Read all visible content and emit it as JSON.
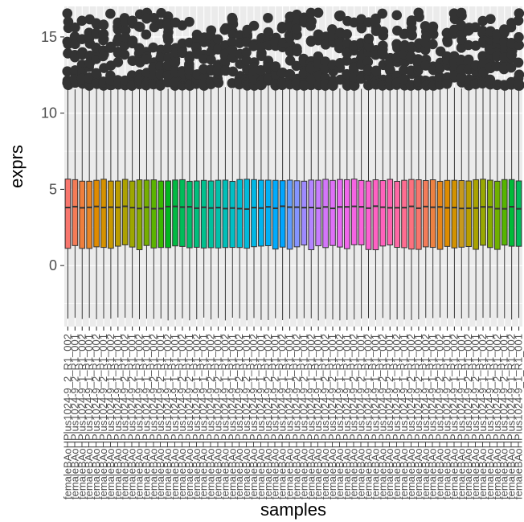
{
  "chart_data": {
    "type": "boxplot",
    "xlabel": "samples",
    "ylabel": "exprs",
    "ylim": [
      -4.0,
      17.0
    ],
    "y_ticks": [
      0,
      5,
      10,
      15
    ],
    "y_tick_labels": [
      "0",
      "5",
      "10",
      "15"
    ],
    "grid": true,
    "background": "#ebebeb",
    "gridline_color": "#ffffff",
    "legend": "none",
    "series_name": "",
    "n_samples": 64,
    "box_whisker_color": "#333333",
    "outlier_color": "#333333",
    "sample_colors": [
      "#F8766D",
      "#F47B56",
      "#EF7F3C",
      "#E88526",
      "#E08B00",
      "#D59100",
      "#C99800",
      "#BB9D00",
      "#ADA200",
      "#9DA700",
      "#8BAB00",
      "#76AF00",
      "#5BB300",
      "#39B600",
      "#00B81F",
      "#00BA42",
      "#00BC59",
      "#00BE6C",
      "#00BF7D",
      "#00C08D",
      "#00C19C",
      "#00C1AA",
      "#00C0B8",
      "#00BFC4",
      "#00BDD0",
      "#00BBDB",
      "#00B8E5",
      "#00B4EF",
      "#00B0F6",
      "#00ABFD",
      "#00A5FF",
      "#619CFF",
      "#8494FF",
      "#9E8AFF",
      "#B385FF",
      "#C77CFF",
      "#D376F9",
      "#DF70F8",
      "#E76BF3",
      "#F066EA",
      "#F564E3",
      "#FA62DB",
      "#FD61D1",
      "#FF61C3",
      "#FF62BC",
      "#FF64B0",
      "#FF67A4",
      "#FF6C91",
      "#FC717F",
      "#F8766D",
      "#F37B59",
      "#ED8141",
      "#E7861B",
      "#DE8C00",
      "#D39200",
      "#C7991D",
      "#B99E00",
      "#AAA300",
      "#99A800",
      "#86AC00",
      "#70B000",
      "#56B400",
      "#00BA38",
      "#00BC5A"
    ],
    "box_summary_typical": {
      "min": -3.5,
      "q1": 1.2,
      "median": 3.8,
      "q3": 5.6,
      "upper_outlier_range": [
        11.8,
        16.6
      ]
    },
    "x_tick_label_lines": [
      "femaleBAoHPlus1024-9_2_R1_002",
      "femaleBAoHPlus1024-9_2_R1_001",
      "femaleBAoHPlus1024-9_1_R1_002",
      "femaleBAoHPlus1024-9_1_R1_001"
    ]
  }
}
